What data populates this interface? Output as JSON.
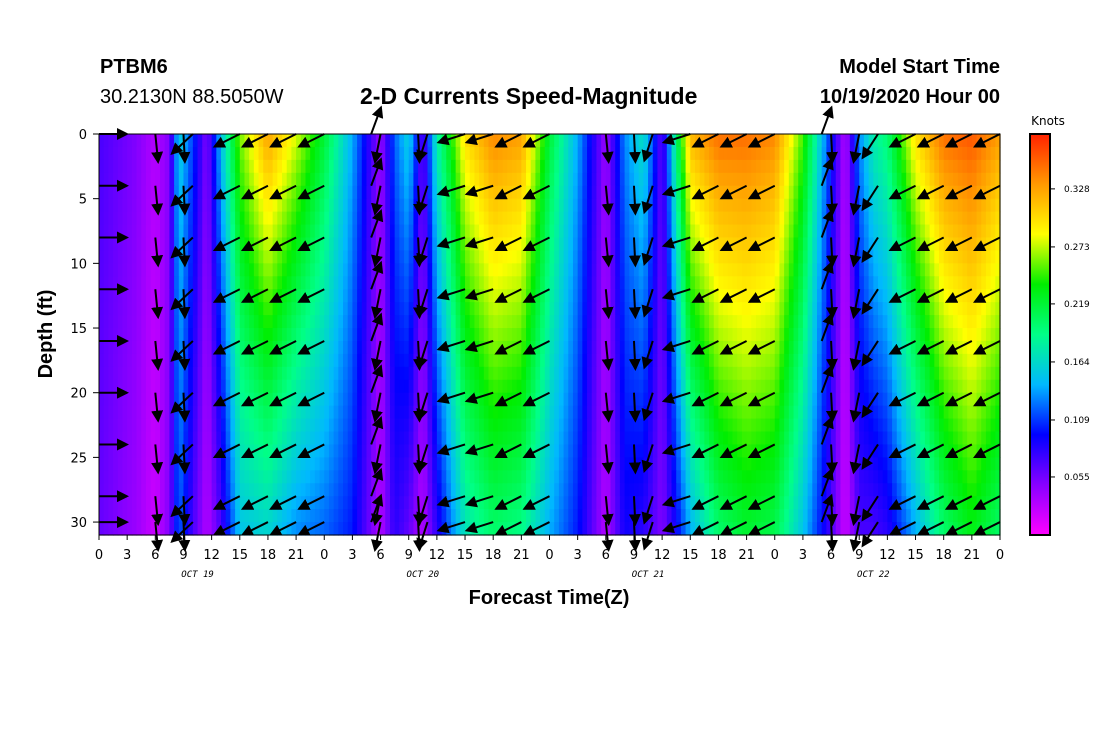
{
  "header": {
    "station": "PTBM6",
    "location": "30.2130N 88.5050W",
    "title": "2-D Currents Speed-Magnitude",
    "model_start_label": "Model Start Time",
    "model_start_value": "10/19/2020 Hour 00"
  },
  "chart_data": {
    "type": "heatmap",
    "title": "2-D Currents Speed-Magnitude",
    "xlabel": "Forecast Time(Z)",
    "ylabel": "Depth (ft)",
    "xlim": [
      0,
      96
    ],
    "ylim": [
      31,
      0
    ],
    "x_tick_labels": [
      "0",
      "3",
      "6",
      "9",
      "12",
      "15",
      "18",
      "21",
      "0",
      "3",
      "6",
      "9",
      "12",
      "15",
      "18",
      "21",
      "0",
      "3",
      "6",
      "9",
      "12",
      "15",
      "18",
      "21",
      "0",
      "3",
      "6",
      "9",
      "12",
      "15",
      "18",
      "21",
      "0"
    ],
    "y_ticks": [
      0,
      5,
      10,
      15,
      20,
      25,
      30
    ],
    "date_labels": [
      {
        "label": "OCT 19",
        "hour": 10.5
      },
      {
        "label": "OCT 20",
        "hour": 34.5
      },
      {
        "label": "OCT 21",
        "hour": 58.5
      },
      {
        "label": "OCT 22",
        "hour": 82.5
      }
    ],
    "colorbar": {
      "unit": "Knots",
      "tick_labels": [
        "0.328",
        "0.273",
        "0.219",
        "0.164",
        "0.109",
        "0.055"
      ],
      "tick_values": [
        0.328,
        0.273,
        0.219,
        0.164,
        0.109,
        0.055
      ],
      "range": [
        0.0,
        0.38
      ],
      "colors": [
        "#ff00ff",
        "#8800ff",
        "#0000ff",
        "#00b8ff",
        "#00ff88",
        "#00ee00",
        "#ffff00",
        "#ff9900",
        "#ff2200"
      ]
    },
    "speed_profile": {
      "description": "surface speed (knots) vs forecast hour; speeds decrease with depth, tidal minima near hours 6, 11, 30, 35, 54, 60, 78, 84",
      "hours": [
        0,
        2,
        4,
        6,
        7.5,
        8.5,
        10,
        11.5,
        13,
        15,
        18,
        21,
        24,
        27,
        30,
        31.5,
        33,
        34.5,
        36,
        39,
        42,
        45,
        48,
        51,
        54,
        56,
        58,
        60,
        61.5,
        63,
        66,
        69,
        72,
        75,
        78,
        79.5,
        81,
        82.5,
        84,
        87,
        90,
        93,
        96
      ],
      "surface": [
        0.07,
        0.06,
        0.05,
        0.03,
        0.05,
        0.16,
        0.11,
        0.05,
        0.15,
        0.26,
        0.33,
        0.28,
        0.22,
        0.14,
        0.04,
        0.12,
        0.16,
        0.06,
        0.18,
        0.3,
        0.34,
        0.33,
        0.22,
        0.14,
        0.04,
        0.13,
        0.17,
        0.06,
        0.2,
        0.32,
        0.35,
        0.35,
        0.34,
        0.25,
        0.1,
        0.03,
        0.13,
        0.18,
        0.2,
        0.3,
        0.35,
        0.36,
        0.33
      ],
      "bottom": [
        0.06,
        0.05,
        0.04,
        0.02,
        0.05,
        0.12,
        0.07,
        0.03,
        0.07,
        0.15,
        0.16,
        0.13,
        0.12,
        0.1,
        0.03,
        0.08,
        0.06,
        0.03,
        0.08,
        0.17,
        0.2,
        0.19,
        0.14,
        0.1,
        0.03,
        0.09,
        0.08,
        0.05,
        0.09,
        0.14,
        0.2,
        0.22,
        0.21,
        0.15,
        0.07,
        0.02,
        0.07,
        0.07,
        0.08,
        0.14,
        0.2,
        0.23,
        0.2
      ]
    },
    "vector_depths": [
      0,
      4,
      8,
      12,
      16,
      20,
      24,
      28,
      30
    ],
    "vectors": [
      {
        "hour": 0,
        "dx": 1.0,
        "dy": 0.0
      },
      {
        "hour": 4.5,
        "dx": 0.0,
        "dy": 0.0
      },
      {
        "hour": 6,
        "dx": 0.1,
        "dy": 1.0
      },
      {
        "hour": 9,
        "dx": 0.05,
        "dy": 1.0
      },
      {
        "hour": 10,
        "dx": -0.75,
        "dy": 0.7
      },
      {
        "hour": 15,
        "dx": -0.9,
        "dy": 0.45
      },
      {
        "hour": 18,
        "dx": -0.9,
        "dy": 0.45
      },
      {
        "hour": 21,
        "dx": -0.9,
        "dy": 0.45
      },
      {
        "hour": 24,
        "dx": -0.9,
        "dy": 0.45
      },
      {
        "hour": 29,
        "dx": 0.35,
        "dy": -0.95
      },
      {
        "hour": 30,
        "dx": -0.2,
        "dy": 1.0
      },
      {
        "hour": 34,
        "dx": 0.05,
        "dy": 1.0
      },
      {
        "hour": 35,
        "dx": -0.3,
        "dy": 0.95
      },
      {
        "hour": 39,
        "dx": -0.95,
        "dy": 0.3
      },
      {
        "hour": 42,
        "dx": -0.95,
        "dy": 0.3
      },
      {
        "hour": 45,
        "dx": -0.9,
        "dy": 0.45
      },
      {
        "hour": 48,
        "dx": -0.9,
        "dy": 0.45
      },
      {
        "hour": 54,
        "dx": 0.1,
        "dy": 1.0
      },
      {
        "hour": 57,
        "dx": 0.05,
        "dy": 1.0
      },
      {
        "hour": 59,
        "dx": -0.3,
        "dy": 0.95
      },
      {
        "hour": 63,
        "dx": -0.95,
        "dy": 0.3
      },
      {
        "hour": 66,
        "dx": -0.9,
        "dy": 0.45
      },
      {
        "hour": 69,
        "dx": -0.9,
        "dy": 0.45
      },
      {
        "hour": 72,
        "dx": -0.9,
        "dy": 0.45
      },
      {
        "hour": 77,
        "dx": 0.35,
        "dy": -0.95
      },
      {
        "hour": 78,
        "dx": 0.05,
        "dy": 1.0
      },
      {
        "hour": 81,
        "dx": -0.2,
        "dy": 1.0
      },
      {
        "hour": 83,
        "dx": -0.55,
        "dy": 0.85
      },
      {
        "hour": 87,
        "dx": -0.9,
        "dy": 0.45
      },
      {
        "hour": 90,
        "dx": -0.9,
        "dy": 0.45
      },
      {
        "hour": 93,
        "dx": -0.9,
        "dy": 0.45
      },
      {
        "hour": 96,
        "dx": -0.9,
        "dy": 0.45
      }
    ]
  }
}
